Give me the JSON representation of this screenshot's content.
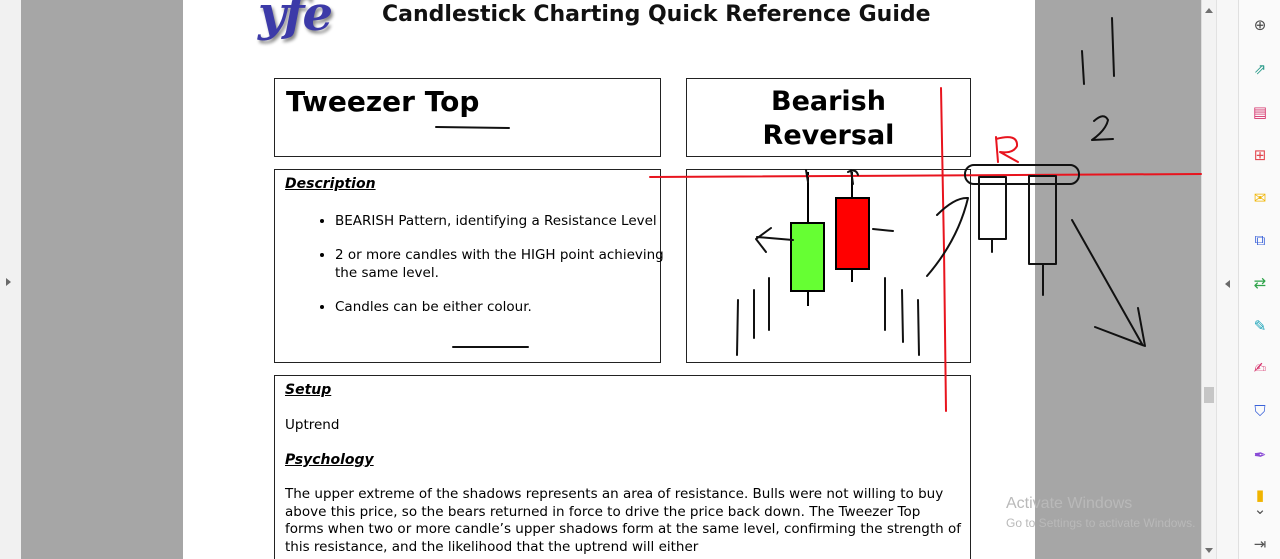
{
  "document": {
    "logo_text": "yfe",
    "title": "Candlestick Charting Quick Reference Guide",
    "pattern_name": "Tweezer Top",
    "reversal_type_line1": "Bearish",
    "reversal_type_line2": "Reversal",
    "description": {
      "heading": "Description",
      "bullets": [
        "BEARISH Pattern, identifying a Resistance Level",
        "2 or more candles with the HIGH point achieving the same level.",
        "Candles can be either colour."
      ]
    },
    "setup": {
      "heading": "Setup",
      "text": "Uptrend"
    },
    "psychology": {
      "heading": "Psychology",
      "text": "The upper extreme of the shadows represents an area of resistance. Bulls were not willing to buy above this price, so the bears returned in force to drive the price back down. The Tweezer Top forms when two or more candle’s upper shadows form at the same level, confirming the strength of this resistance, and the likelihood that the uptrend will either"
    },
    "candles": {
      "bull_color": "#66ff33",
      "bear_color": "#ff0000"
    }
  },
  "annotations": {
    "label_r": "R",
    "label_2": "2",
    "ink_red": "#e8141e",
    "ink_black": "#111111"
  },
  "watermark": {
    "line1": "Activate Windows",
    "line2": "Go to Settings to activate Windows."
  },
  "tools": [
    {
      "name": "zoom-icon",
      "glyph": "⊕",
      "color": "#4a4a4a"
    },
    {
      "name": "export-pdf-icon",
      "glyph": "⇗",
      "color": "#2f9d8d"
    },
    {
      "name": "organize-pages-icon",
      "glyph": "▤",
      "color": "#d6336c"
    },
    {
      "name": "create-pdf-icon",
      "glyph": "⊞",
      "color": "#e34850"
    },
    {
      "name": "comment-icon",
      "glyph": "✉",
      "color": "#f0b400"
    },
    {
      "name": "combine-files-icon",
      "glyph": "⧉",
      "color": "#3a62d9"
    },
    {
      "name": "compress-icon",
      "glyph": "⇄",
      "color": "#2fa34a"
    },
    {
      "name": "edit-pdf-icon",
      "glyph": "✎",
      "color": "#17a2b8"
    },
    {
      "name": "fill-sign-icon",
      "glyph": "✍",
      "color": "#d6336c"
    },
    {
      "name": "protect-icon",
      "glyph": "⛉",
      "color": "#3a62d9"
    },
    {
      "name": "request-signature-icon",
      "glyph": "✒",
      "color": "#8a4bd6"
    },
    {
      "name": "more-tools-icon",
      "glyph": "▮",
      "color": "#f0b400"
    },
    {
      "name": "scroll-down-icon",
      "glyph": "⌄",
      "color": "#555555"
    },
    {
      "name": "collapse-pane-icon",
      "glyph": "⇥",
      "color": "#555555"
    }
  ]
}
